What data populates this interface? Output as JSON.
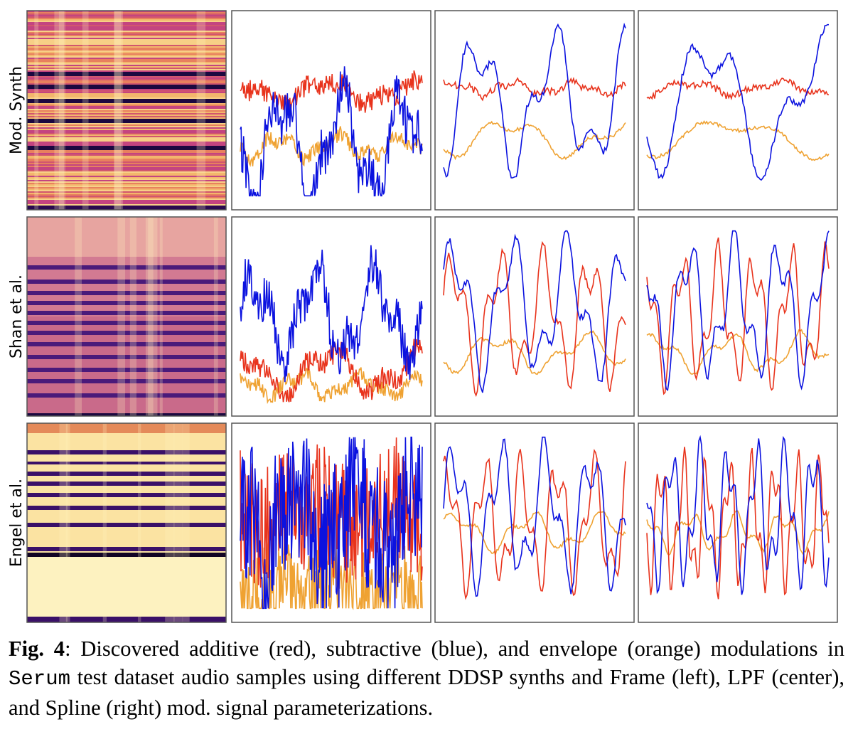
{
  "figure": {
    "row_labels": [
      "Mod. Synth",
      "Shan et al.",
      "Engel et al."
    ]
  },
  "caption": {
    "label": "Fig. 4",
    "text_before": ": Discovered additive (red), subtractive (blue), and envelope (orange) modulations in ",
    "code": "Serum",
    "text_after": " test dataset audio samples using different DDSP synths and Frame (left), LPF (center), and Spline (right) mod. signal parameterizations."
  }
}
